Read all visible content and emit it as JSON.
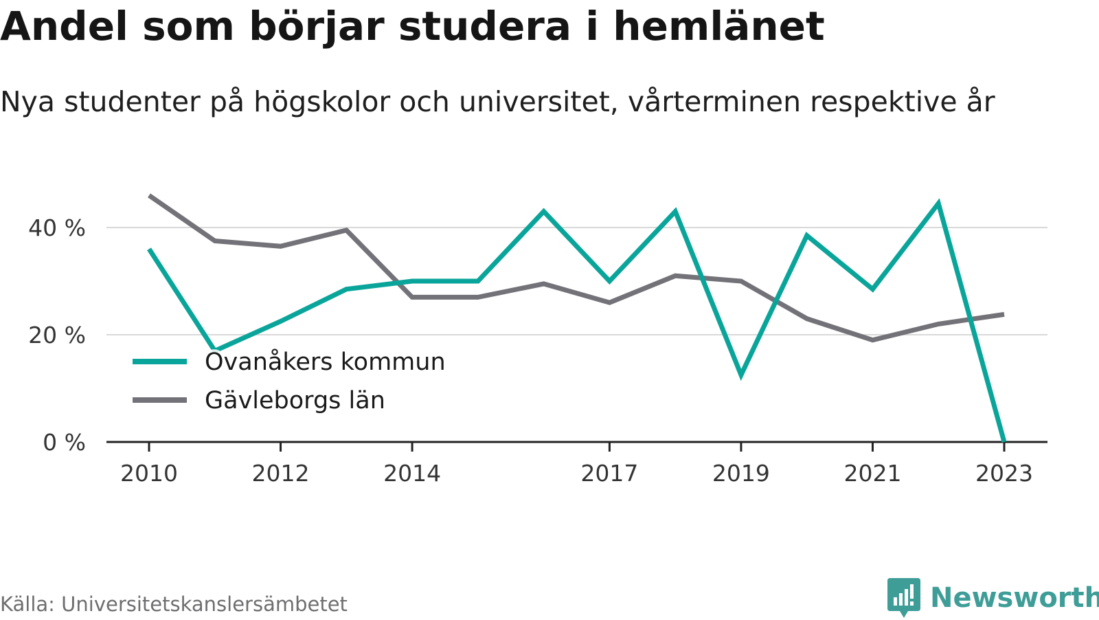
{
  "header": {
    "title": "Andel som börjar studera i hemlänet",
    "subtitle": "Nya studenter på högskolor och universitet, vårterminen respektive år"
  },
  "footer": {
    "source": "Källa: Universitetskanslersämbetet",
    "brand": "Newsworthy",
    "brand_icon": "newsworthy-logo-icon"
  },
  "chart_data": {
    "type": "line",
    "x": [
      2010,
      2011,
      2012,
      2013,
      2014,
      2015,
      2016,
      2017,
      2018,
      2019,
      2020,
      2021,
      2022,
      2023
    ],
    "x_ticks": [
      "2010",
      "2012",
      "2014",
      "2017",
      "2019",
      "2021",
      "2023"
    ],
    "y_ticks": [
      "0 %",
      "20 %",
      "40 %"
    ],
    "ylim": [
      0,
      47
    ],
    "grid": true,
    "legend_position": "left",
    "series": [
      {
        "name": "Ovanåkers kommun",
        "color": "#0aa59a",
        "values": [
          36.0,
          17.0,
          22.5,
          28.5,
          30.0,
          30.0,
          43.0,
          30.0,
          43.0,
          12.5,
          38.5,
          28.5,
          44.5,
          0.0
        ]
      },
      {
        "name": "Gävleborgs län",
        "color": "#737278",
        "values": [
          46.0,
          37.5,
          36.5,
          39.5,
          27.0,
          27.0,
          29.5,
          26.0,
          31.0,
          30.0,
          23.0,
          19.0,
          22.0,
          23.8
        ]
      }
    ]
  }
}
